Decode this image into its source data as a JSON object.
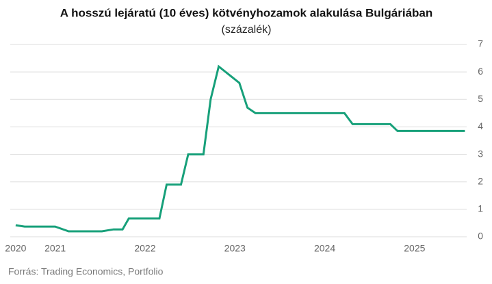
{
  "chart_data": {
    "type": "line",
    "title": "A hosszú lejáratú (10 éves) kötvényhozamok alakulása Bulgáriában",
    "subtitle": "(százalék)",
    "source": "Forrás: Trading Economics, Portfolio",
    "x": [
      2020.56,
      2020.66,
      2021.0,
      2021.15,
      2021.52,
      2021.65,
      2021.75,
      2021.82,
      2022.16,
      2022.24,
      2022.4,
      2022.48,
      2022.65,
      2022.73,
      2022.82,
      2023.05,
      2023.14,
      2023.23,
      2024.22,
      2024.31,
      2024.73,
      2024.81,
      2025.56
    ],
    "series": [
      {
        "color": "#17a07a",
        "values": [
          0.42,
          0.37,
          0.37,
          0.2,
          0.2,
          0.27,
          0.27,
          0.67,
          0.67,
          1.9,
          1.9,
          3.0,
          3.0,
          5.0,
          6.2,
          5.6,
          4.7,
          4.5,
          4.5,
          4.1,
          4.1,
          3.85,
          3.85
        ]
      }
    ],
    "xlim": [
      2020.5,
      2025.58
    ],
    "xticks": [
      {
        "value": 2020.56,
        "label": "2020"
      },
      2021,
      2022,
      2023,
      2024,
      2025
    ],
    "ylim": [
      0,
      7
    ],
    "yticks": [
      0,
      1,
      2,
      3,
      4,
      5,
      6,
      7
    ],
    "grid": true
  }
}
